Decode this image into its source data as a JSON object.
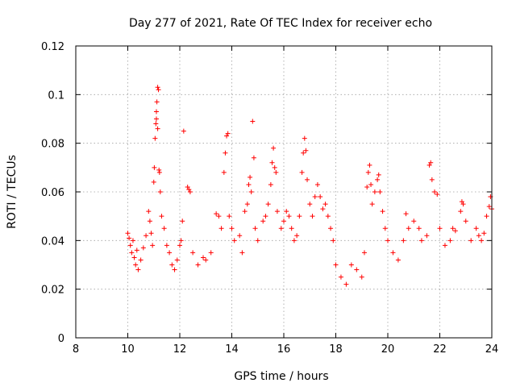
{
  "chart_data": {
    "type": "scatter",
    "title": "Day 277 of 2021, Rate Of TEC Index for receiver echo",
    "xlabel": "GPS time / hours",
    "ylabel": "ROTI / TECUs",
    "xlim": [
      8,
      24
    ],
    "ylim": [
      0,
      0.12
    ],
    "xticks": [
      8,
      10,
      12,
      14,
      16,
      18,
      20,
      22,
      24
    ],
    "yticks": [
      0,
      0.02,
      0.04,
      0.06,
      0.08,
      0.1,
      0.12
    ],
    "xtick_labels": [
      "8",
      "10",
      "12",
      "14",
      "16",
      "18",
      "20",
      "22",
      "24"
    ],
    "ytick_labels": [
      "0",
      "0.02",
      "0.04",
      "0.06",
      "0.08",
      "0.1",
      "0.12"
    ],
    "grid": true,
    "marker": "plus",
    "color": "#ff0000",
    "series": [
      {
        "points": [
          [
            10.0,
            0.043
          ],
          [
            10.05,
            0.041
          ],
          [
            10.1,
            0.038
          ],
          [
            10.15,
            0.035
          ],
          [
            10.2,
            0.04
          ],
          [
            10.25,
            0.033
          ],
          [
            10.3,
            0.03
          ],
          [
            10.35,
            0.036
          ],
          [
            10.4,
            0.028
          ],
          [
            10.5,
            0.032
          ],
          [
            10.6,
            0.037
          ],
          [
            10.7,
            0.042
          ],
          [
            10.8,
            0.052
          ],
          [
            10.85,
            0.048
          ],
          [
            10.9,
            0.043
          ],
          [
            10.95,
            0.038
          ],
          [
            11.0,
            0.064
          ],
          [
            11.02,
            0.07
          ],
          [
            11.05,
            0.082
          ],
          [
            11.08,
            0.088
          ],
          [
            11.1,
            0.093
          ],
          [
            11.12,
            0.097
          ],
          [
            11.15,
            0.103
          ],
          [
            11.18,
            0.102
          ],
          [
            11.2,
            0.069
          ],
          [
            11.22,
            0.068
          ],
          [
            11.25,
            0.06
          ],
          [
            11.1,
            0.09
          ],
          [
            11.15,
            0.086
          ],
          [
            11.3,
            0.05
          ],
          [
            11.4,
            0.045
          ],
          [
            11.5,
            0.038
          ],
          [
            11.6,
            0.035
          ],
          [
            11.7,
            0.03
          ],
          [
            11.8,
            0.028
          ],
          [
            11.9,
            0.032
          ],
          [
            12.0,
            0.038
          ],
          [
            12.05,
            0.04
          ],
          [
            12.1,
            0.048
          ],
          [
            12.15,
            0.085
          ],
          [
            12.3,
            0.062
          ],
          [
            12.35,
            0.061
          ],
          [
            12.4,
            0.06
          ],
          [
            12.5,
            0.035
          ],
          [
            12.7,
            0.03
          ],
          [
            12.9,
            0.033
          ],
          [
            13.0,
            0.032
          ],
          [
            13.2,
            0.035
          ],
          [
            13.4,
            0.051
          ],
          [
            13.5,
            0.05
          ],
          [
            13.6,
            0.045
          ],
          [
            13.7,
            0.068
          ],
          [
            13.75,
            0.076
          ],
          [
            13.8,
            0.083
          ],
          [
            13.85,
            0.084
          ],
          [
            13.9,
            0.05
          ],
          [
            14.0,
            0.045
          ],
          [
            14.1,
            0.04
          ],
          [
            14.3,
            0.042
          ],
          [
            14.4,
            0.035
          ],
          [
            14.5,
            0.052
          ],
          [
            14.6,
            0.055
          ],
          [
            14.65,
            0.063
          ],
          [
            14.7,
            0.066
          ],
          [
            14.75,
            0.06
          ],
          [
            14.8,
            0.089
          ],
          [
            14.85,
            0.074
          ],
          [
            14.9,
            0.045
          ],
          [
            15.0,
            0.04
          ],
          [
            15.2,
            0.048
          ],
          [
            15.3,
            0.05
          ],
          [
            15.4,
            0.055
          ],
          [
            15.5,
            0.063
          ],
          [
            15.55,
            0.072
          ],
          [
            15.6,
            0.078
          ],
          [
            15.65,
            0.07
          ],
          [
            15.7,
            0.068
          ],
          [
            15.75,
            0.052
          ],
          [
            15.9,
            0.045
          ],
          [
            16.0,
            0.048
          ],
          [
            16.1,
            0.052
          ],
          [
            16.2,
            0.05
          ],
          [
            16.3,
            0.045
          ],
          [
            16.4,
            0.04
          ],
          [
            16.5,
            0.042
          ],
          [
            16.6,
            0.05
          ],
          [
            16.7,
            0.068
          ],
          [
            16.75,
            0.076
          ],
          [
            16.8,
            0.082
          ],
          [
            16.85,
            0.077
          ],
          [
            16.9,
            0.065
          ],
          [
            17.0,
            0.055
          ],
          [
            17.1,
            0.05
          ],
          [
            17.2,
            0.058
          ],
          [
            17.3,
            0.063
          ],
          [
            17.4,
            0.058
          ],
          [
            17.5,
            0.053
          ],
          [
            17.6,
            0.055
          ],
          [
            17.7,
            0.05
          ],
          [
            17.8,
            0.045
          ],
          [
            17.9,
            0.04
          ],
          [
            18.0,
            0.03
          ],
          [
            18.2,
            0.025
          ],
          [
            18.4,
            0.022
          ],
          [
            18.6,
            0.03
          ],
          [
            18.8,
            0.028
          ],
          [
            19.0,
            0.025
          ],
          [
            19.1,
            0.035
          ],
          [
            19.2,
            0.062
          ],
          [
            19.25,
            0.068
          ],
          [
            19.3,
            0.071
          ],
          [
            19.35,
            0.063
          ],
          [
            19.4,
            0.055
          ],
          [
            19.5,
            0.06
          ],
          [
            19.6,
            0.065
          ],
          [
            19.65,
            0.067
          ],
          [
            19.7,
            0.06
          ],
          [
            19.8,
            0.052
          ],
          [
            19.9,
            0.045
          ],
          [
            20.0,
            0.04
          ],
          [
            20.2,
            0.035
          ],
          [
            20.4,
            0.032
          ],
          [
            20.6,
            0.04
          ],
          [
            20.7,
            0.051
          ],
          [
            20.8,
            0.045
          ],
          [
            21.0,
            0.048
          ],
          [
            21.2,
            0.045
          ],
          [
            21.3,
            0.04
          ],
          [
            21.5,
            0.042
          ],
          [
            21.6,
            0.071
          ],
          [
            21.65,
            0.072
          ],
          [
            21.7,
            0.065
          ],
          [
            21.8,
            0.06
          ],
          [
            21.9,
            0.059
          ],
          [
            22.0,
            0.045
          ],
          [
            22.2,
            0.038
          ],
          [
            22.4,
            0.04
          ],
          [
            22.5,
            0.045
          ],
          [
            22.6,
            0.044
          ],
          [
            22.8,
            0.052
          ],
          [
            22.85,
            0.056
          ],
          [
            22.9,
            0.055
          ],
          [
            23.0,
            0.048
          ],
          [
            23.2,
            0.04
          ],
          [
            23.4,
            0.045
          ],
          [
            23.5,
            0.042
          ],
          [
            23.6,
            0.04
          ],
          [
            23.7,
            0.043
          ],
          [
            23.8,
            0.05
          ],
          [
            23.9,
            0.054
          ],
          [
            23.95,
            0.058
          ],
          [
            24.0,
            0.053
          ]
        ]
      }
    ]
  }
}
